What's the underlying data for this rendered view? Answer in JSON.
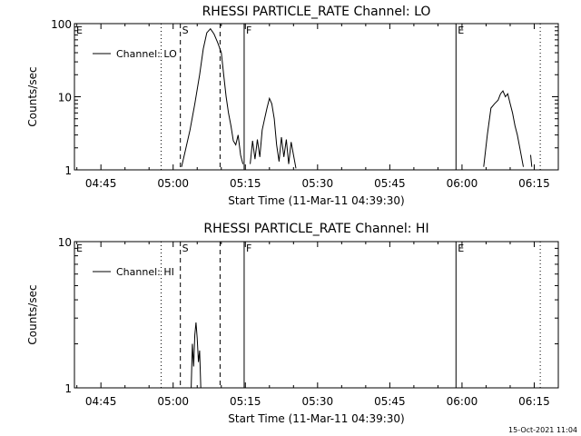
{
  "chart_data": [
    {
      "type": "line",
      "title": "RHESSI PARTICLE_RATE Channel: LO",
      "xlabel": "Start Time (11-Mar-11 04:39:30)",
      "ylabel": "Counts/sec",
      "y_scale": "log",
      "ylim": [
        1,
        100
      ],
      "x_range": [
        "04:39:30",
        "06:20:00"
      ],
      "x_ticks": [
        "04:45",
        "05:00",
        "05:15",
        "05:30",
        "05:45",
        "06:00",
        "06:15"
      ],
      "y_ticks": [
        "1",
        "10",
        "100"
      ],
      "legend": {
        "placement": "top-left",
        "entries": [
          "Channel: LO"
        ]
      },
      "markers": [
        {
          "label": "E",
          "time": "04:39:30",
          "style": "none"
        },
        {
          "label": "",
          "time": "04:57:30",
          "style": "dotted"
        },
        {
          "label": "S",
          "time": "05:01:30",
          "style": "dashed"
        },
        {
          "label": "",
          "time": "05:09:45",
          "style": "dashed"
        },
        {
          "label": "F",
          "time": "05:14:45",
          "style": "solid"
        },
        {
          "label": "E",
          "time": "05:58:45",
          "style": "solid"
        },
        {
          "label": "",
          "time": "06:16:15",
          "style": "dotted"
        }
      ],
      "series": [
        {
          "segments": [
            [
              [
                "05:01:45",
                1.1
              ],
              [
                "05:02:30",
                1.8
              ],
              [
                "05:03:30",
                3.5
              ],
              [
                "05:04:30",
                8
              ],
              [
                "05:05:30",
                20
              ],
              [
                "05:06:15",
                45
              ],
              [
                "05:07:00",
                75
              ],
              [
                "05:07:45",
                85
              ],
              [
                "05:08:30",
                72
              ],
              [
                "05:09:15",
                55
              ],
              [
                "05:10:00",
                40
              ],
              [
                "05:10:30",
                20
              ],
              [
                "05:11:00",
                10
              ],
              [
                "05:11:30",
                6
              ],
              [
                "05:12:00",
                4
              ],
              [
                "05:12:30",
                2.5
              ],
              [
                "05:13:00",
                2.2
              ],
              [
                "05:13:30",
                3
              ],
              [
                "05:14:00",
                1.6
              ],
              [
                "05:14:30",
                1.2
              ]
            ],
            [
              [
                "05:16:00",
                1.2
              ],
              [
                "05:16:30",
                2.5
              ],
              [
                "05:17:00",
                1.4
              ],
              [
                "05:17:30",
                2.6
              ],
              [
                "05:18:00",
                1.5
              ],
              [
                "05:18:30",
                3.5
              ],
              [
                "05:19:00",
                5
              ],
              [
                "05:19:30",
                7
              ],
              [
                "05:20:00",
                9.5
              ],
              [
                "05:20:30",
                8
              ],
              [
                "05:21:00",
                5
              ],
              [
                "05:21:30",
                2.2
              ],
              [
                "05:22:00",
                1.3
              ],
              [
                "05:22:30",
                2.8
              ],
              [
                "05:23:00",
                1.5
              ],
              [
                "05:23:30",
                2.6
              ],
              [
                "05:24:00",
                1.2
              ],
              [
                "05:24:30",
                2.4
              ],
              [
                "05:25:00",
                1.6
              ],
              [
                "05:25:30",
                1.05
              ]
            ],
            [
              [
                "06:04:30",
                1.1
              ],
              [
                "06:05:15",
                3
              ],
              [
                "06:06:00",
                7
              ],
              [
                "06:06:45",
                8
              ],
              [
                "06:07:30",
                9
              ],
              [
                "06:08:00",
                11
              ],
              [
                "06:08:30",
                12
              ],
              [
                "06:09:00",
                10
              ],
              [
                "06:09:30",
                11
              ],
              [
                "06:10:00",
                8
              ],
              [
                "06:10:30",
                6
              ],
              [
                "06:11:00",
                4
              ],
              [
                "06:11:30",
                3
              ],
              [
                "06:12:00",
                2
              ],
              [
                "06:12:45",
                1.1
              ]
            ],
            [
              [
                "06:14:15",
                1.6
              ],
              [
                "06:14:30",
                1.1
              ]
            ]
          ]
        }
      ]
    },
    {
      "type": "line",
      "title": "RHESSI PARTICLE_RATE Channel: HI",
      "xlabel": "Start Time (11-Mar-11 04:39:30)",
      "ylabel": "Counts/sec",
      "y_scale": "log",
      "ylim": [
        1,
        10
      ],
      "x_range": [
        "04:39:30",
        "06:20:00"
      ],
      "x_ticks": [
        "04:45",
        "05:00",
        "05:15",
        "05:30",
        "05:45",
        "06:00",
        "06:15"
      ],
      "y_ticks": [
        "1",
        "10"
      ],
      "legend": {
        "placement": "top-left",
        "entries": [
          "Channel: HI"
        ]
      },
      "markers": [
        {
          "label": "E",
          "time": "04:39:30",
          "style": "none"
        },
        {
          "label": "",
          "time": "04:57:30",
          "style": "dotted"
        },
        {
          "label": "S",
          "time": "05:01:30",
          "style": "dashed"
        },
        {
          "label": "",
          "time": "05:09:45",
          "style": "dashed"
        },
        {
          "label": "F",
          "time": "05:14:45",
          "style": "solid"
        },
        {
          "label": "E",
          "time": "05:58:45",
          "style": "solid"
        },
        {
          "label": "",
          "time": "06:16:15",
          "style": "dotted"
        }
      ],
      "series": [
        {
          "segments": [
            [
              [
                "05:03:45",
                1.0
              ],
              [
                "05:04:00",
                2.0
              ],
              [
                "05:04:15",
                1.4
              ],
              [
                "05:04:30",
                2.3
              ],
              [
                "05:04:45",
                2.8
              ],
              [
                "05:05:00",
                2.2
              ],
              [
                "05:05:15",
                1.5
              ],
              [
                "05:05:30",
                1.8
              ],
              [
                "05:05:45",
                1.0
              ]
            ]
          ]
        }
      ]
    }
  ],
  "footer": {
    "timestamp": "15-Oct-2021 11:04"
  }
}
